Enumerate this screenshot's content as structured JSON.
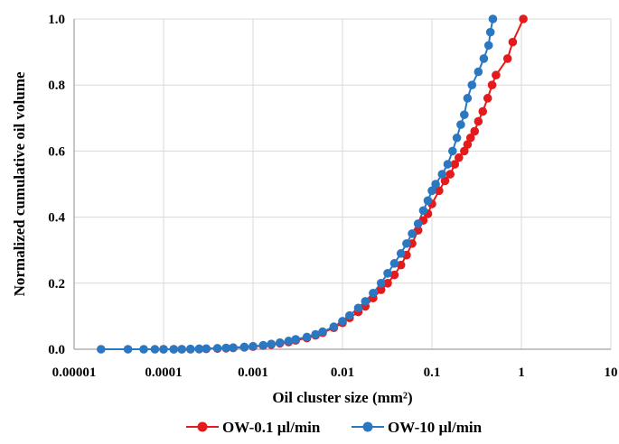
{
  "chart_data": {
    "type": "scatter",
    "xlabel": "Oil cluster size (mm²)",
    "ylabel": "Normalized cumulative oil volume",
    "xscale": "log",
    "xlim": [
      1e-05,
      10
    ],
    "ylim": [
      0,
      1
    ],
    "grid": true,
    "legend_position": "bottom",
    "x_ticks": [
      "0.00001",
      "0.0001",
      "0.001",
      "0.01",
      "0.1",
      "1",
      "10"
    ],
    "y_ticks": [
      "0.0",
      "0.2",
      "0.4",
      "0.6",
      "0.8",
      "1.0"
    ],
    "series": [
      {
        "name": "OW-0.1 µl/min",
        "color": "#e41a1c",
        "points": [
          [
            0.0001,
            0.0
          ],
          [
            0.00013,
            0.0
          ],
          [
            0.00016,
            0.0
          ],
          [
            0.0002,
            0.0
          ],
          [
            0.00025,
            0.0005
          ],
          [
            0.0003,
            0.001
          ],
          [
            0.0004,
            0.002
          ],
          [
            0.0005,
            0.003
          ],
          [
            0.0006,
            0.004
          ],
          [
            0.0008,
            0.006
          ],
          [
            0.001,
            0.008
          ],
          [
            0.0013,
            0.011
          ],
          [
            0.0016,
            0.014
          ],
          [
            0.002,
            0.018
          ],
          [
            0.0025,
            0.022
          ],
          [
            0.003,
            0.027
          ],
          [
            0.004,
            0.034
          ],
          [
            0.005,
            0.042
          ],
          [
            0.006,
            0.05
          ],
          [
            0.008,
            0.065
          ],
          [
            0.01,
            0.08
          ],
          [
            0.012,
            0.095
          ],
          [
            0.015,
            0.113
          ],
          [
            0.018,
            0.13
          ],
          [
            0.022,
            0.155
          ],
          [
            0.027,
            0.18
          ],
          [
            0.032,
            0.2
          ],
          [
            0.038,
            0.225
          ],
          [
            0.045,
            0.255
          ],
          [
            0.052,
            0.285
          ],
          [
            0.06,
            0.32
          ],
          [
            0.07,
            0.36
          ],
          [
            0.08,
            0.39
          ],
          [
            0.09,
            0.41
          ],
          [
            0.1,
            0.44
          ],
          [
            0.12,
            0.48
          ],
          [
            0.14,
            0.51
          ],
          [
            0.16,
            0.53
          ],
          [
            0.18,
            0.56
          ],
          [
            0.2,
            0.58
          ],
          [
            0.23,
            0.6
          ],
          [
            0.25,
            0.62
          ],
          [
            0.27,
            0.64
          ],
          [
            0.3,
            0.66
          ],
          [
            0.33,
            0.69
          ],
          [
            0.37,
            0.72
          ],
          [
            0.42,
            0.76
          ],
          [
            0.47,
            0.8
          ],
          [
            0.52,
            0.83
          ],
          [
            0.7,
            0.88
          ],
          [
            0.8,
            0.93
          ],
          [
            1.05,
            1.0
          ]
        ]
      },
      {
        "name": "OW-10 µl/min",
        "color": "#2a78c2",
        "points": [
          [
            2e-05,
            0.0
          ],
          [
            4e-05,
            0.0
          ],
          [
            6e-05,
            0.0
          ],
          [
            8e-05,
            0.0
          ],
          [
            0.0001,
            0.0
          ],
          [
            0.00013,
            0.0
          ],
          [
            0.00016,
            0.0
          ],
          [
            0.0002,
            0.001
          ],
          [
            0.00025,
            0.0015
          ],
          [
            0.0003,
            0.002
          ],
          [
            0.0004,
            0.003
          ],
          [
            0.0005,
            0.004
          ],
          [
            0.0006,
            0.005
          ],
          [
            0.0008,
            0.007
          ],
          [
            0.001,
            0.009
          ],
          [
            0.0013,
            0.012
          ],
          [
            0.0016,
            0.016
          ],
          [
            0.002,
            0.02
          ],
          [
            0.0025,
            0.025
          ],
          [
            0.003,
            0.03
          ],
          [
            0.004,
            0.037
          ],
          [
            0.005,
            0.045
          ],
          [
            0.006,
            0.053
          ],
          [
            0.008,
            0.068
          ],
          [
            0.01,
            0.085
          ],
          [
            0.012,
            0.102
          ],
          [
            0.015,
            0.125
          ],
          [
            0.018,
            0.145
          ],
          [
            0.022,
            0.17
          ],
          [
            0.027,
            0.2
          ],
          [
            0.032,
            0.23
          ],
          [
            0.038,
            0.26
          ],
          [
            0.045,
            0.29
          ],
          [
            0.052,
            0.32
          ],
          [
            0.06,
            0.35
          ],
          [
            0.07,
            0.38
          ],
          [
            0.08,
            0.42
          ],
          [
            0.09,
            0.45
          ],
          [
            0.1,
            0.48
          ],
          [
            0.11,
            0.5
          ],
          [
            0.13,
            0.53
          ],
          [
            0.15,
            0.56
          ],
          [
            0.17,
            0.6
          ],
          [
            0.19,
            0.64
          ],
          [
            0.21,
            0.68
          ],
          [
            0.23,
            0.71
          ],
          [
            0.25,
            0.76
          ],
          [
            0.28,
            0.8
          ],
          [
            0.33,
            0.84
          ],
          [
            0.38,
            0.88
          ],
          [
            0.43,
            0.92
          ],
          [
            0.45,
            0.96
          ],
          [
            0.48,
            1.0
          ]
        ]
      }
    ]
  }
}
